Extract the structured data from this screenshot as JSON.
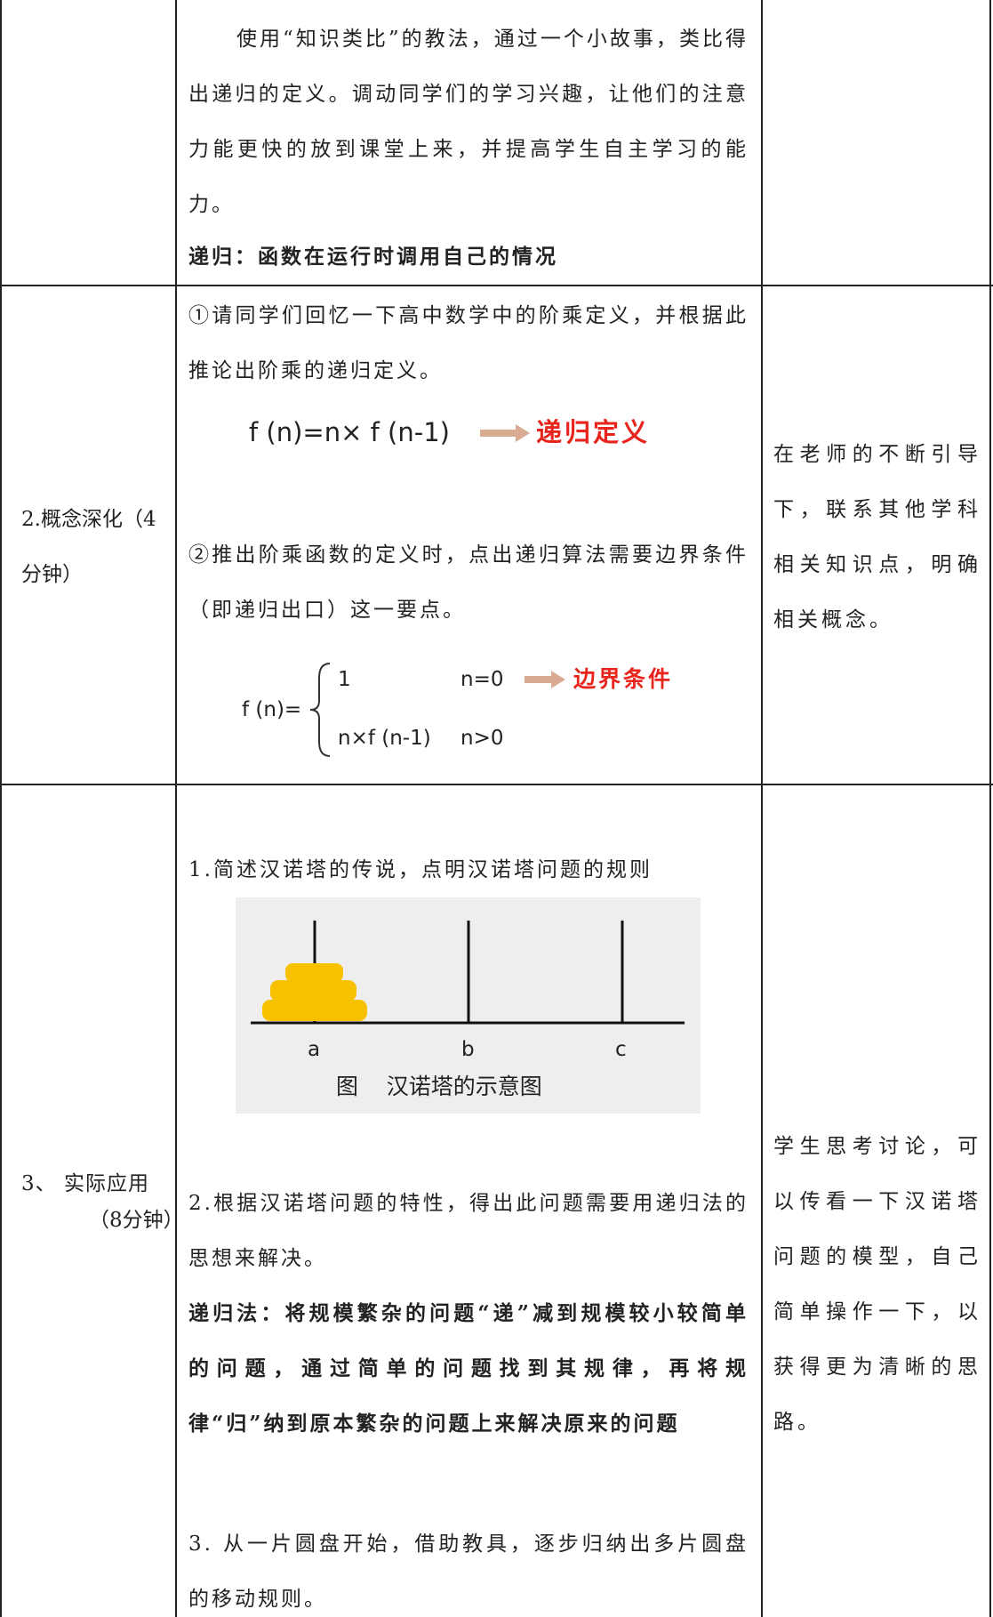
{
  "rows": [
    {
      "content": {
        "paragraph": "使用“知识类比”的教法，通过一个小故事，类比得出递归的定义。调动同学们的学习兴趣，让他们的注意力能更快的放到课堂上来，并提高学生自主学习的能力。",
        "definition": "递归：函数在运行时调用自己的情况"
      }
    },
    {
      "stage": "2.概念深化（4分钟）",
      "content": {
        "step1": "①请同学们回忆一下高中数学中的阶乘定义，并根据此推论出阶乘的递归定义。",
        "formula1": {
          "expression": "f (n)=n× f (n-1)",
          "label": "递归定义"
        },
        "step2": "②推出阶乘函数的定义时，点出递归算法需要边界条件（即递归出口）这一要点。",
        "formula2": {
          "lhs": "f (n)=",
          "case1": "1",
          "cond1": "n=0",
          "label": "边界条件",
          "case2": "n×f (n-1)",
          "cond2": "n>0"
        }
      },
      "student": "在老师的不断引导下，联系其他学科相关知识点，明确相关概念。"
    },
    {
      "stage": "3、 实际应用",
      "stage_time": "（8分钟）",
      "content": {
        "step1": "1.简述汉诺塔的传说，点明汉诺塔问题的规则",
        "figure": {
          "pegs": [
            "a",
            "b",
            "c"
          ],
          "caption": "图    汉诺塔的示意图"
        },
        "step2": "2.根据汉诺塔问题的特性，得出此问题需要用递归法的思想来解决。",
        "definition": "递归法：将规模繁杂的问题“递”减到规模较小较简单的问题，通过简单的问题找到其规律，再将规律“归”纳到原本繁杂的问题上来解决原来的问题",
        "step3": "3. 从一片圆盘开始，借助教具，逐步归纳出多片圆盘的移动规则。"
      },
      "student": "学生思考讨论，可以传看一下汉诺塔问题的模型，自己简单操作一下，以获得更为清晰的思路。"
    }
  ]
}
